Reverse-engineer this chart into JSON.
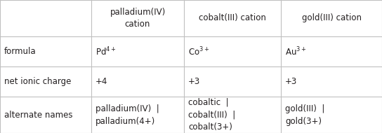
{
  "col_headers": [
    "palladium(IV)\ncation",
    "cobalt(III) cation",
    "gold(III) cation"
  ],
  "row_headers": [
    "formula",
    "net ionic charge",
    "alternate names"
  ],
  "formulas": [
    "Pd$^{4+}$",
    "Co$^{3+}$",
    "Au$^{3+}$"
  ],
  "charges": [
    "+4",
    "+3",
    "+3"
  ],
  "alt_names": [
    "palladium(IV)  |\npalladium(4+)",
    "cobaltic  |\ncobalt(III)  |\ncobalt(3+)",
    "gold(III)  |\ngold(3+)"
  ],
  "bg_color": "#ffffff",
  "text_color": "#231f20",
  "line_color": "#c0c0c0",
  "fontsize": 8.5
}
